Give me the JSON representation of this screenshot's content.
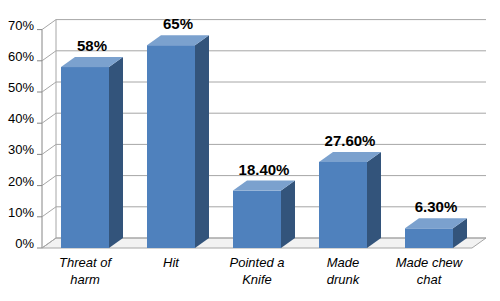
{
  "chart_data": {
    "type": "bar",
    "categories": [
      "Threat of harm",
      "Hit",
      "Pointed a Knife",
      "Made drunk",
      "Made chew chat"
    ],
    "values": [
      58,
      65,
      18.4,
      27.6,
      6.3
    ],
    "value_labels": [
      "58%",
      "65%",
      "18.40%",
      "27.60%",
      "6.30%"
    ],
    "color": "#4f81bd",
    "ylim": [
      0,
      70
    ],
    "yticks": [
      {
        "value": 0,
        "label": "0%"
      },
      {
        "value": 10,
        "label": "10%"
      },
      {
        "value": 20,
        "label": "20%"
      },
      {
        "value": 30,
        "label": "30%"
      },
      {
        "value": 40,
        "label": "40%"
      },
      {
        "value": 50,
        "label": "50%"
      },
      {
        "value": 60,
        "label": "60%"
      },
      {
        "value": 70,
        "label": "70%"
      }
    ],
    "grid": true,
    "data_labels": true
  }
}
